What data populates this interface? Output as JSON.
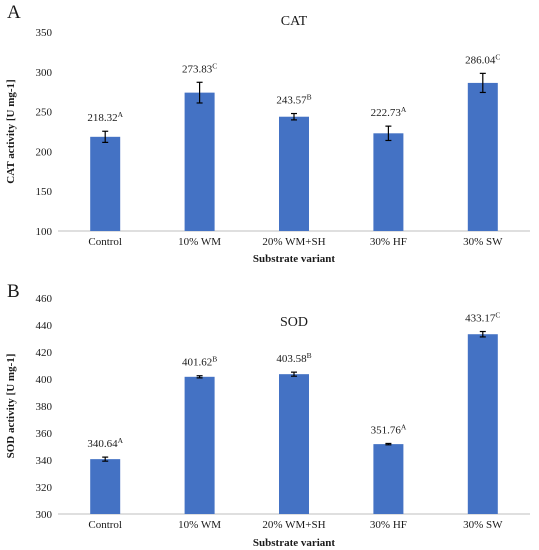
{
  "chart_data": [
    {
      "type": "bar",
      "panel": "A",
      "title": "CAT",
      "xlabel": "Substrate variant",
      "ylabel": "CAT activity [U mg-1]",
      "ylim": [
        100,
        350
      ],
      "yticks": [
        100,
        150,
        200,
        250,
        300,
        350
      ],
      "grid": false,
      "categories": [
        "Control",
        "10% WM",
        "20% WM+SH",
        "30% HF",
        "30% SW"
      ],
      "values": [
        218.32,
        273.83,
        243.57,
        222.73,
        286.04
      ],
      "errors": [
        7,
        13,
        4,
        9,
        12
      ],
      "labels": [
        "218.32",
        "273.83",
        "243.57",
        "222.73",
        "286.04"
      ],
      "groups": [
        "A",
        "C",
        "B",
        "A",
        "C"
      ],
      "color": "#4472c4"
    },
    {
      "type": "bar",
      "panel": "B",
      "title": "SOD",
      "xlabel": "Substrate variant",
      "ylabel": "SOD activity [U mg-1]",
      "ylim": [
        300,
        460
      ],
      "yticks": [
        300,
        320,
        340,
        360,
        380,
        400,
        420,
        440,
        460
      ],
      "grid": false,
      "categories": [
        "Control",
        "10% WM",
        "20% WM+SH",
        "30% HF",
        "30% SW"
      ],
      "values": [
        340.64,
        401.62,
        403.58,
        351.76,
        433.17
      ],
      "errors": [
        1.5,
        0.8,
        1.5,
        0.5,
        2
      ],
      "labels": [
        "340.64",
        "401.62",
        "403.58",
        "351.76",
        "433.17"
      ],
      "groups": [
        "A",
        "B",
        "B",
        "A",
        "C"
      ],
      "color": "#4472c4"
    }
  ]
}
